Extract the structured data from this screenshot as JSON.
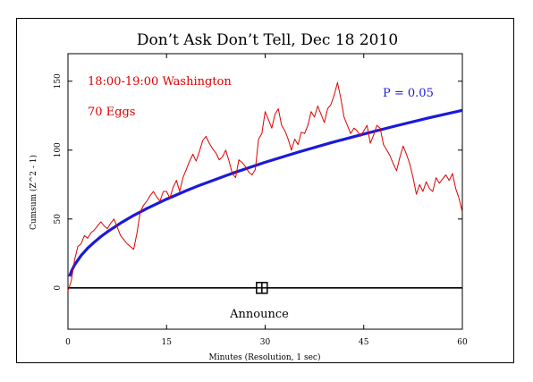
{
  "chart_data": {
    "type": "line",
    "title": "Don’t Ask Don’t Tell, Dec 18 2010",
    "xlabel": "Minutes (Resolution, 1 sec)",
    "ylabel": "Cumsum (Z^2 - 1)",
    "xlim": [
      0,
      60
    ],
    "ylim": [
      -30,
      170
    ],
    "xticks": [
      0,
      15,
      30,
      45,
      60
    ],
    "yticks": [
      0,
      50,
      100,
      150
    ],
    "grid": false,
    "annotations": {
      "time_window": "18:00-19:00 Washington",
      "eggs": "70 Eggs",
      "p_label": "P = 0.05",
      "event_label": "Announce",
      "event_x": 29.5
    },
    "colors": {
      "cumsum": "#dd0000",
      "significance": "#1a1adc",
      "baseline": "#000000",
      "text_red": "#dd0000",
      "text_blue": "#1a1adc"
    },
    "series": [
      {
        "x": [
          0,
          0.5,
          1,
          1.5,
          2,
          2.5,
          3,
          3.5,
          4,
          4.5,
          5,
          5.5,
          6,
          6.5,
          7,
          7.5,
          8,
          8.5,
          9,
          9.5,
          10,
          10.5,
          11,
          11.5,
          12,
          12.5,
          13,
          13.5,
          14,
          14.5,
          15,
          15.5,
          16,
          16.5,
          17,
          17.5,
          18,
          18.5,
          19,
          19.5,
          20,
          20.5,
          21,
          21.5,
          22,
          22.5,
          23,
          23.5,
          24,
          24.5,
          25,
          25.5,
          26,
          26.5,
          27,
          27.5,
          28,
          28.5,
          29,
          29.5,
          30,
          30.5,
          31,
          31.5,
          32,
          32.5,
          33,
          33.5,
          34,
          34.5,
          35,
          35.5,
          36,
          36.5,
          37,
          37.5,
          38,
          38.5,
          39,
          39.5,
          40,
          40.5,
          41,
          41.5,
          42,
          42.5,
          43,
          43.5,
          44,
          44.5,
          45,
          45.5,
          46,
          46.5,
          47,
          47.5,
          48,
          48.5,
          49,
          49.5,
          50,
          50.5,
          51,
          51.5,
          52,
          52.5,
          53,
          53.5,
          54,
          54.5,
          55,
          55.5,
          56,
          56.5,
          57,
          57.5,
          58,
          58.5,
          59,
          59.5,
          60
        ],
        "y": [
          -2,
          5,
          20,
          30,
          32,
          38,
          36,
          40,
          42,
          45,
          48,
          45,
          43,
          47,
          50,
          44,
          38,
          35,
          32,
          30,
          28,
          40,
          55,
          60,
          63,
          67,
          70,
          66,
          63,
          70,
          70,
          65,
          73,
          78,
          70,
          80,
          86,
          92,
          97,
          92,
          99,
          107,
          110,
          105,
          101,
          98,
          93,
          95,
          100,
          92,
          83,
          80,
          93,
          91,
          88,
          84,
          82,
          86,
          108,
          112,
          128,
          122,
          116,
          126,
          130,
          118,
          114,
          108,
          100,
          108,
          104,
          113,
          112,
          118,
          128,
          124,
          132,
          126,
          120,
          130,
          133,
          140,
          149,
          138,
          124,
          118,
          112,
          116,
          114,
          110,
          114,
          118,
          105,
          111,
          118,
          116,
          104,
          100,
          96,
          90,
          85,
          95,
          103,
          97,
          90,
          80,
          68,
          75,
          70,
          77,
          72,
          70,
          80,
          76,
          79,
          82,
          78,
          83,
          72,
          65,
          55
        ]
      },
      {
        "x": [
          0.25,
          0.5,
          1,
          2,
          3,
          4,
          5,
          6,
          8,
          10,
          12,
          15,
          18,
          20,
          25,
          30,
          35,
          40,
          45,
          50,
          55,
          60
        ],
        "y": [
          8.3,
          11.8,
          16.6,
          23.5,
          28.8,
          33.2,
          37.2,
          40.7,
          47.0,
          52.6,
          57.6,
          64.4,
          70.6,
          74.4,
          83.2,
          91.2,
          98.5,
          105.3,
          111.7,
          117.7,
          123.5,
          128.9
        ]
      },
      {
        "x": [
          0,
          60
        ],
        "y": [
          0,
          0
        ]
      }
    ]
  }
}
